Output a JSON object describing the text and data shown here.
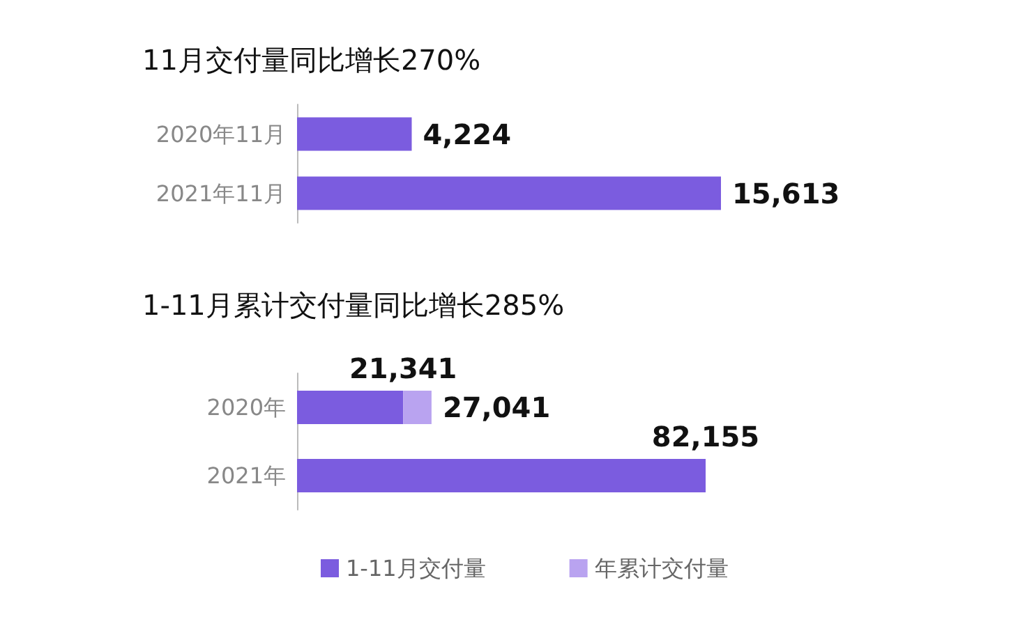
{
  "chart_data": [
    {
      "type": "bar",
      "title": "11月交付量同比增长270%",
      "orientation": "horizontal",
      "categories": [
        "2020年11月",
        "2021年11月"
      ],
      "values": [
        4224,
        15613
      ],
      "value_labels": [
        "4,224",
        "15,613"
      ],
      "color": "#7b5cdf",
      "legend": false
    },
    {
      "type": "bar",
      "title": "1-11月累计交付量同比增长285%",
      "orientation": "horizontal",
      "stacked": true,
      "categories": [
        "2020年",
        "2021年"
      ],
      "legend": "bottom",
      "series": [
        {
          "name": "1-11月交付量",
          "color": "#7b5cdf",
          "values": [
            21341,
            82155
          ],
          "value_labels": [
            "21,341",
            "82,155"
          ]
        },
        {
          "name": "年累计交付量",
          "color": "#b9a3f0",
          "values": [
            5700,
            null
          ]
        }
      ],
      "annotations": [
        {
          "text": "27,041",
          "x": 27041,
          "y": "2020年"
        }
      ]
    }
  ]
}
